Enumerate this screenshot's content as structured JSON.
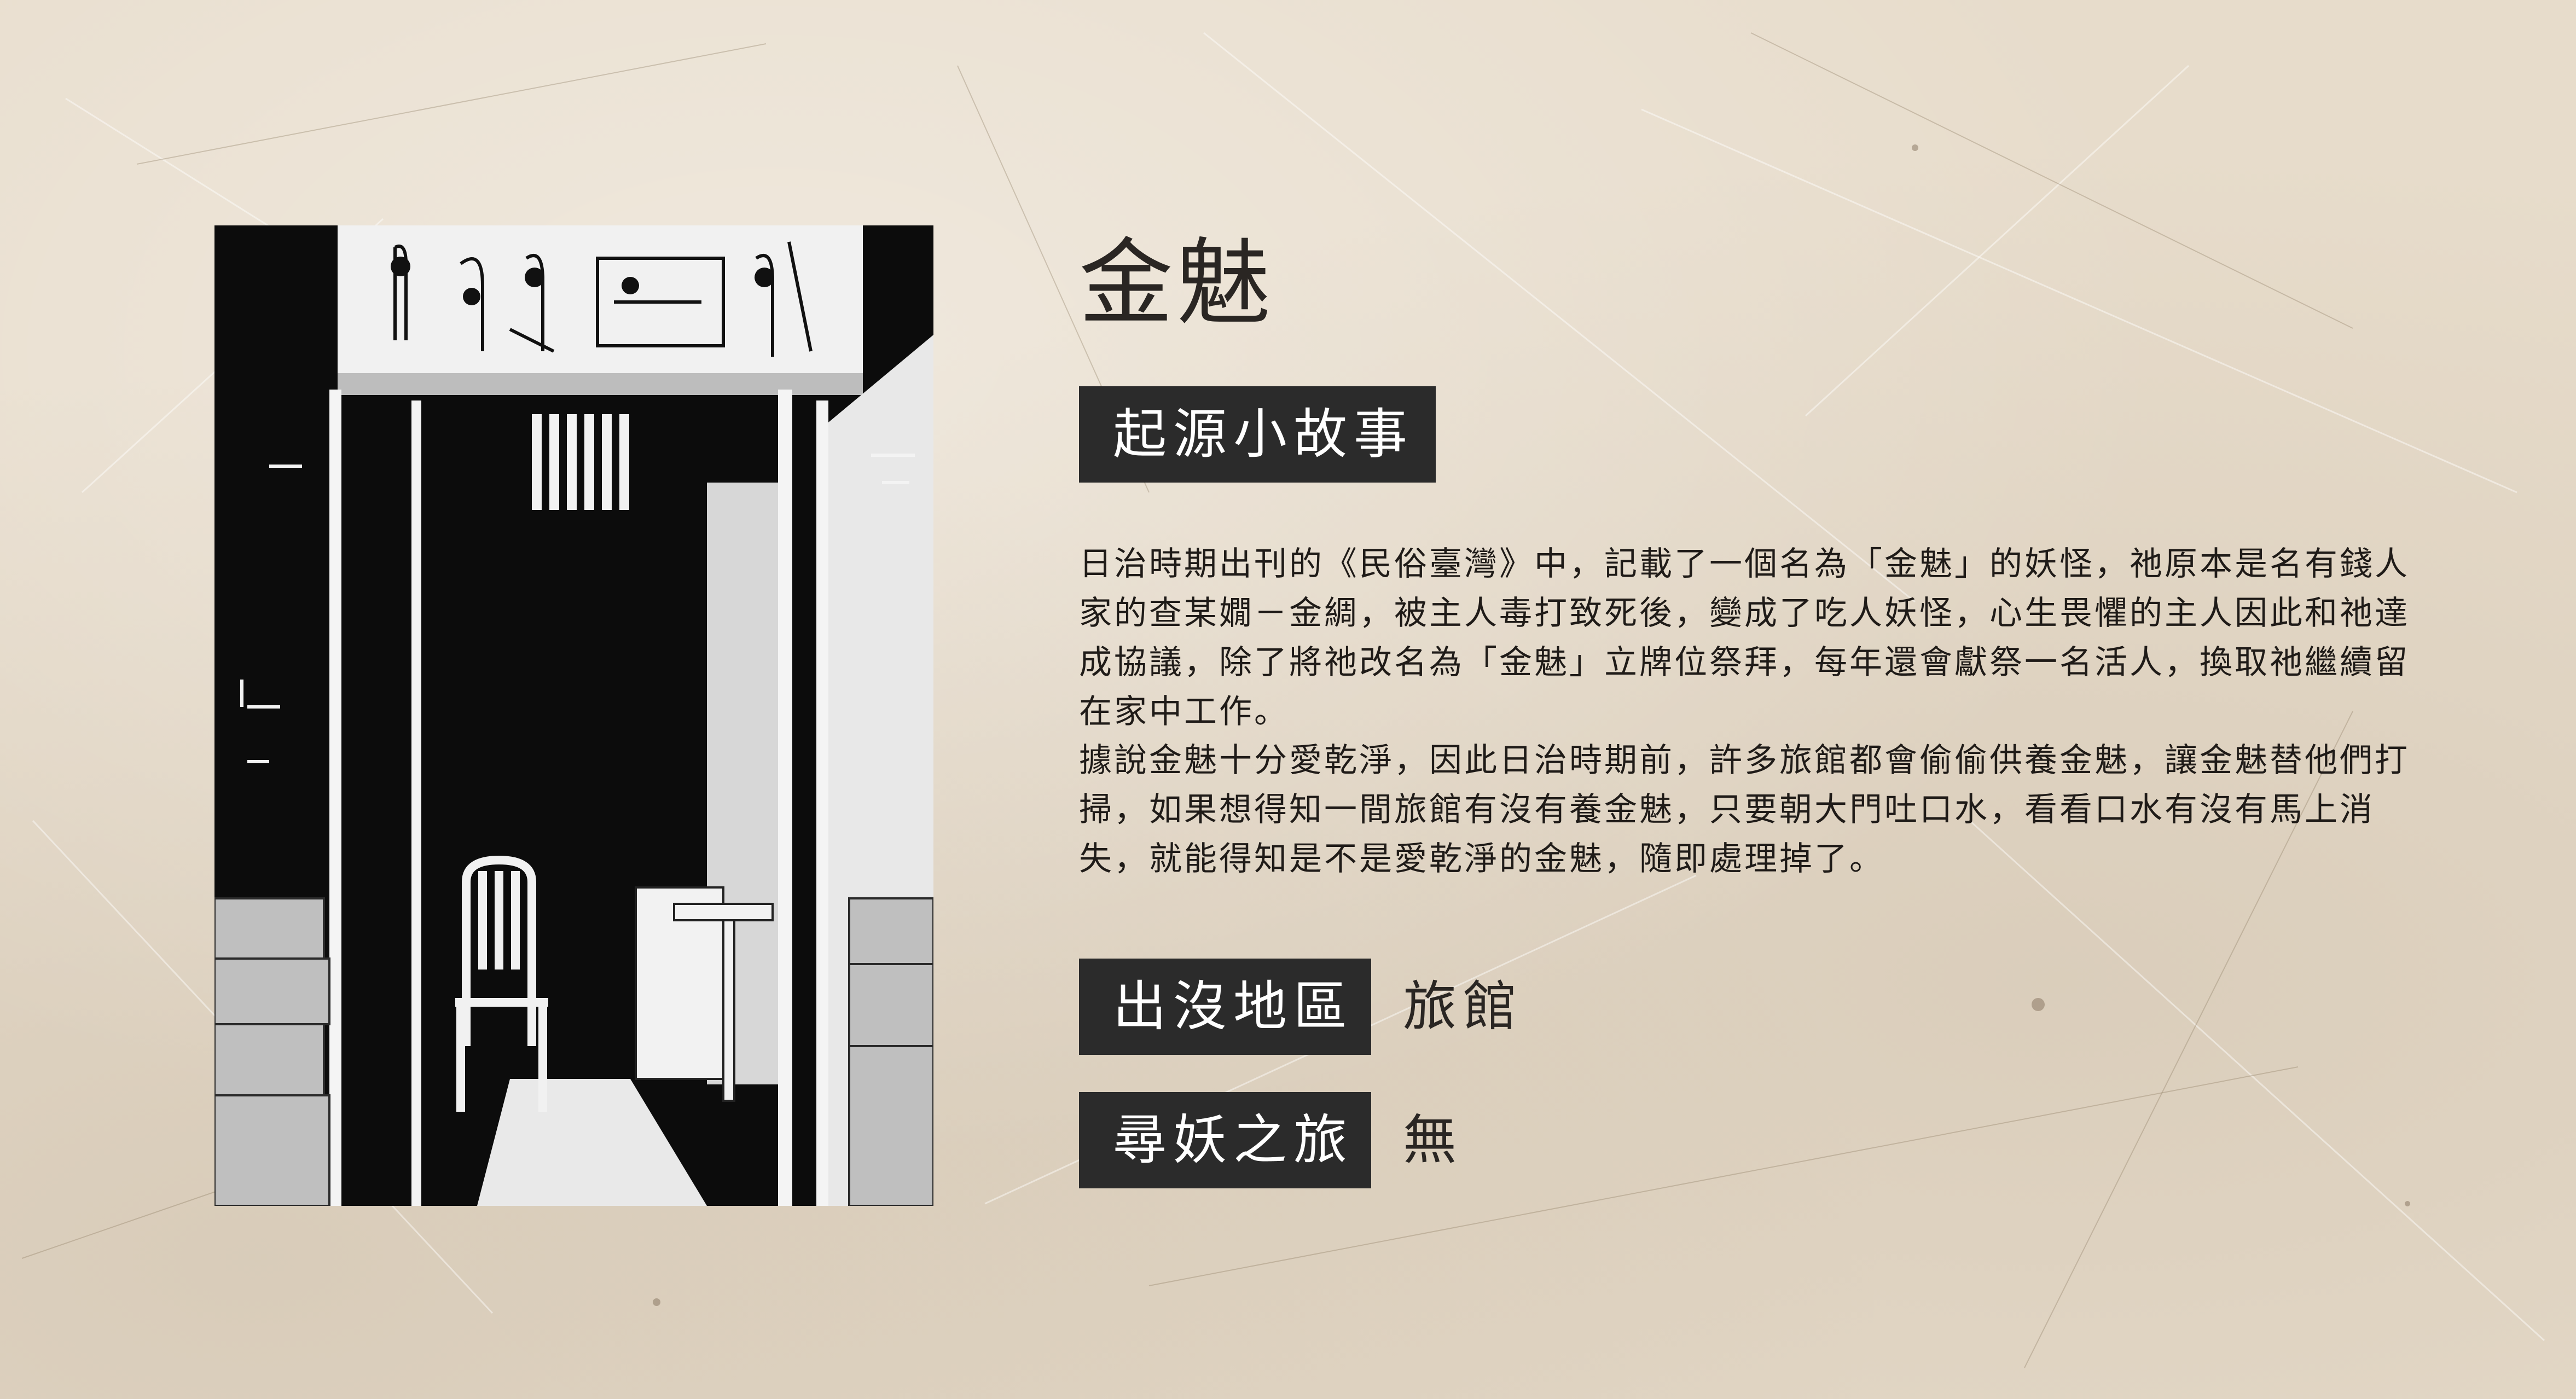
{
  "title": "金魅",
  "origin_section": {
    "label": "起源小故事",
    "paragraphs": [
      "日治時期出刊的《民俗臺灣》中，記載了一個名為「金魅」的妖怪，祂原本是名有錢人家的查某嫺－金綢，被主人毒打致死後，變成了吃人妖怪，心生畏懼的主人因此和祂達成協議，除了將祂改名為「金魅」立牌位祭拜，每年還會獻祭一名活人，換取祂繼續留在家中工作。",
      "據說金魅十分愛乾淨，因此日治時期前，許多旅館都會偷偷供養金魅，讓金魅替他們打掃，如果想得知一間旅館有沒有養金魅，只要朝大門吐口水，看看口水有沒有馬上消失，就能得知是不是愛乾淨的金魅，隨即處理掉了。"
    ]
  },
  "info_rows": [
    {
      "label": "出沒地區",
      "value": "旅館"
    },
    {
      "label": "尋妖之旅",
      "value": "無"
    }
  ],
  "colors": {
    "background": "#e7dccb",
    "label_box": "#2b2b2b",
    "text": "#231f1c"
  },
  "icons": {
    "illustration": "ink-illustration-inn-room"
  }
}
